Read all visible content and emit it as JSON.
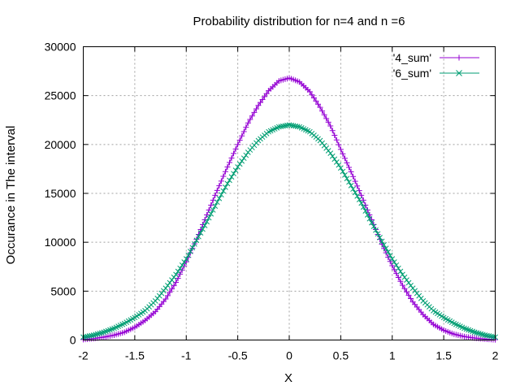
{
  "chart_data": {
    "type": "line",
    "title": "Probability distribution for n=4 and n =6",
    "xlabel": "X",
    "ylabel": "Occurance in The interval",
    "xlim": [
      -2,
      2
    ],
    "ylim": [
      0,
      30000
    ],
    "x_ticks": [
      "-2",
      "-1.5",
      "-1",
      "-0.5",
      "0",
      "0.5",
      "1",
      "1.5",
      "2"
    ],
    "y_ticks": [
      "0",
      "5000",
      "10000",
      "15000",
      "20000",
      "25000",
      "30000"
    ],
    "grid": true,
    "legend_position": "top-right",
    "series": [
      {
        "name": "'4_sum'",
        "color": "#9400d3",
        "marker": "plus",
        "x": [
          -2,
          -1.9,
          -1.8,
          -1.7,
          -1.6,
          -1.5,
          -1.4,
          -1.3,
          -1.2,
          -1.1,
          -1,
          -0.9,
          -0.8,
          -0.7,
          -0.6,
          -0.5,
          -0.4,
          -0.3,
          -0.2,
          -0.1,
          0,
          0.1,
          0.2,
          0.3,
          0.4,
          0.5,
          0.6,
          0.7,
          0.8,
          0.9,
          1,
          1.1,
          1.2,
          1.3,
          1.4,
          1.5,
          1.6,
          1.7,
          1.8,
          1.9,
          2
        ],
        "y": [
          50,
          150,
          300,
          500,
          800,
          1300,
          2000,
          2900,
          4200,
          5900,
          8000,
          10300,
          12800,
          15300,
          17700,
          20000,
          22200,
          24000,
          25500,
          26500,
          26800,
          26400,
          25400,
          23800,
          21900,
          19500,
          17200,
          14800,
          12300,
          9800,
          7600,
          5600,
          3900,
          2600,
          1600,
          1000,
          600,
          350,
          200,
          100,
          30
        ]
      },
      {
        "name": "'6_sum'",
        "color": "#009e73",
        "marker": "cross",
        "x": [
          -2,
          -1.9,
          -1.8,
          -1.7,
          -1.6,
          -1.5,
          -1.4,
          -1.3,
          -1.2,
          -1.1,
          -1,
          -0.9,
          -0.8,
          -0.7,
          -0.6,
          -0.5,
          -0.4,
          -0.3,
          -0.2,
          -0.1,
          0,
          0.1,
          0.2,
          0.3,
          0.4,
          0.5,
          0.6,
          0.7,
          0.8,
          0.9,
          1,
          1.1,
          1.2,
          1.3,
          1.4,
          1.5,
          1.6,
          1.7,
          1.8,
          1.9,
          2
        ],
        "y": [
          300,
          500,
          800,
          1200,
          1700,
          2300,
          3000,
          4000,
          5300,
          6700,
          8300,
          10200,
          12100,
          14100,
          16000,
          17700,
          19200,
          20400,
          21300,
          21800,
          22000,
          21800,
          21300,
          20400,
          19100,
          17600,
          15800,
          14000,
          12000,
          10100,
          8300,
          6700,
          5300,
          4000,
          3000,
          2300,
          1700,
          1200,
          800,
          500,
          300
        ]
      }
    ]
  }
}
